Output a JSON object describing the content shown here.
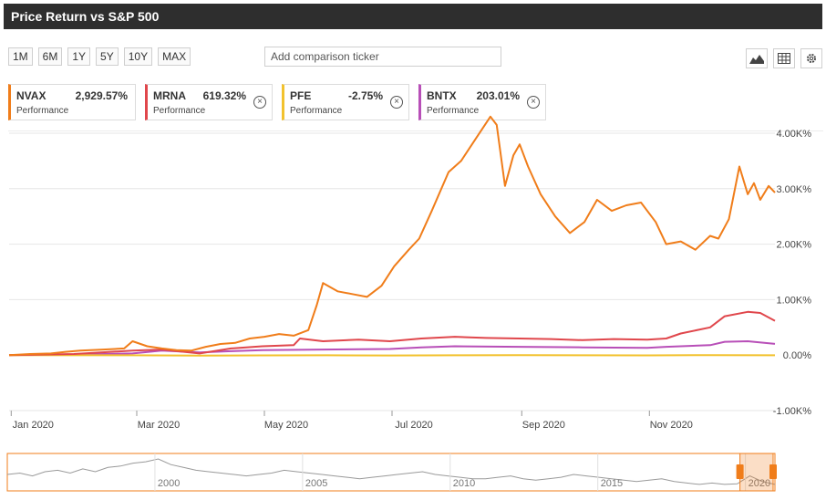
{
  "header": {
    "title": "Price Return vs S&P 500"
  },
  "toolbar": {
    "ranges": [
      "1M",
      "6M",
      "1Y",
      "5Y",
      "10Y",
      "MAX"
    ],
    "compare_placeholder": "Add comparison ticker",
    "icons": [
      "mountain-chart-icon",
      "table-icon",
      "gear-icon"
    ]
  },
  "legend": [
    {
      "ticker": "NVAX",
      "value": "2,929.57%",
      "sub": "Performance",
      "color": "#f07d1a"
    },
    {
      "ticker": "MRNA",
      "value": "619.32%",
      "sub": "Performance",
      "color": "#e0474c"
    },
    {
      "ticker": "PFE",
      "value": "-2.75%",
      "sub": "Performance",
      "color": "#f2c22e"
    },
    {
      "ticker": "BNTX",
      "value": "203.01%",
      "sub": "Performance",
      "color": "#b84fb8"
    }
  ],
  "chart_data": {
    "type": "line",
    "x_tick_labels": [
      "Jan 2020",
      "Mar 2020",
      "May 2020",
      "Jul 2020",
      "Sep 2020",
      "Nov 2020"
    ],
    "y_tick_labels": [
      "4.00K%",
      "3.00K%",
      "2.00K%",
      "1.00K%",
      "0.00%",
      "-1.00K%"
    ],
    "ylim": [
      -1000,
      4000
    ],
    "x_range": [
      "2019-12-31",
      "2020-12-31"
    ],
    "grid": true,
    "series": [
      {
        "name": "NVAX",
        "color": "#f07d1a",
        "points": [
          [
            "2019-12-31",
            0
          ],
          [
            "2020-01-10",
            20
          ],
          [
            "2020-01-20",
            30
          ],
          [
            "2020-01-27",
            60
          ],
          [
            "2020-02-03",
            80
          ],
          [
            "2020-02-14",
            100
          ],
          [
            "2020-02-24",
            120
          ],
          [
            "2020-02-28",
            250
          ],
          [
            "2020-03-06",
            160
          ],
          [
            "2020-03-13",
            120
          ],
          [
            "2020-03-20",
            90
          ],
          [
            "2020-03-27",
            80
          ],
          [
            "2020-04-03",
            150
          ],
          [
            "2020-04-10",
            200
          ],
          [
            "2020-04-17",
            220
          ],
          [
            "2020-04-24",
            300
          ],
          [
            "2020-05-01",
            330
          ],
          [
            "2020-05-08",
            380
          ],
          [
            "2020-05-15",
            350
          ],
          [
            "2020-05-22",
            450
          ],
          [
            "2020-05-26",
            900
          ],
          [
            "2020-05-29",
            1300
          ],
          [
            "2020-06-05",
            1150
          ],
          [
            "2020-06-12",
            1100
          ],
          [
            "2020-06-19",
            1050
          ],
          [
            "2020-06-26",
            1250
          ],
          [
            "2020-07-02",
            1600
          ],
          [
            "2020-07-09",
            1900
          ],
          [
            "2020-07-14",
            2100
          ],
          [
            "2020-07-20",
            2600
          ],
          [
            "2020-07-28",
            3300
          ],
          [
            "2020-08-03",
            3500
          ],
          [
            "2020-08-10",
            3900
          ],
          [
            "2020-08-17",
            4300
          ],
          [
            "2020-08-20",
            4150
          ],
          [
            "2020-08-24",
            3050
          ],
          [
            "2020-08-28",
            3600
          ],
          [
            "2020-08-31",
            3800
          ],
          [
            "2020-09-04",
            3400
          ],
          [
            "2020-09-10",
            2900
          ],
          [
            "2020-09-17",
            2500
          ],
          [
            "2020-09-24",
            2200
          ],
          [
            "2020-10-01",
            2400
          ],
          [
            "2020-10-07",
            2800
          ],
          [
            "2020-10-14",
            2600
          ],
          [
            "2020-10-21",
            2700
          ],
          [
            "2020-10-28",
            2750
          ],
          [
            "2020-11-04",
            2400
          ],
          [
            "2020-11-09",
            2000
          ],
          [
            "2020-11-16",
            2050
          ],
          [
            "2020-11-23",
            1900
          ],
          [
            "2020-11-30",
            2150
          ],
          [
            "2020-12-04",
            2100
          ],
          [
            "2020-12-09",
            2450
          ],
          [
            "2020-12-14",
            3400
          ],
          [
            "2020-12-18",
            2900
          ],
          [
            "2020-12-21",
            3100
          ],
          [
            "2020-12-24",
            2800
          ],
          [
            "2020-12-28",
            3050
          ],
          [
            "2020-12-31",
            2930
          ]
        ]
      },
      {
        "name": "MRNA",
        "color": "#e0474c",
        "points": [
          [
            "2019-12-31",
            0
          ],
          [
            "2020-01-31",
            20
          ],
          [
            "2020-02-28",
            80
          ],
          [
            "2020-03-13",
            100
          ],
          [
            "2020-03-31",
            30
          ],
          [
            "2020-04-15",
            120
          ],
          [
            "2020-04-30",
            160
          ],
          [
            "2020-05-15",
            180
          ],
          [
            "2020-05-18",
            300
          ],
          [
            "2020-05-29",
            250
          ],
          [
            "2020-06-15",
            280
          ],
          [
            "2020-06-30",
            250
          ],
          [
            "2020-07-15",
            300
          ],
          [
            "2020-07-31",
            330
          ],
          [
            "2020-08-15",
            310
          ],
          [
            "2020-08-31",
            300
          ],
          [
            "2020-09-15",
            290
          ],
          [
            "2020-09-30",
            270
          ],
          [
            "2020-10-15",
            290
          ],
          [
            "2020-10-31",
            280
          ],
          [
            "2020-11-09",
            300
          ],
          [
            "2020-11-16",
            390
          ],
          [
            "2020-11-30",
            500
          ],
          [
            "2020-12-07",
            700
          ],
          [
            "2020-12-18",
            780
          ],
          [
            "2020-12-24",
            760
          ],
          [
            "2020-12-31",
            619
          ]
        ]
      },
      {
        "name": "PFE",
        "color": "#f2c22e",
        "points": [
          [
            "2019-12-31",
            0
          ],
          [
            "2020-02-28",
            -3
          ],
          [
            "2020-03-31",
            -10
          ],
          [
            "2020-04-30",
            -5
          ],
          [
            "2020-05-31",
            -4
          ],
          [
            "2020-06-30",
            -6
          ],
          [
            "2020-07-31",
            -3
          ],
          [
            "2020-08-31",
            -2
          ],
          [
            "2020-09-30",
            -4
          ],
          [
            "2020-10-31",
            -5
          ],
          [
            "2020-11-30",
            0
          ],
          [
            "2020-12-31",
            -3
          ]
        ]
      },
      {
        "name": "BNTX",
        "color": "#b84fb8",
        "points": [
          [
            "2019-12-31",
            0
          ],
          [
            "2020-01-31",
            10
          ],
          [
            "2020-02-28",
            30
          ],
          [
            "2020-03-13",
            80
          ],
          [
            "2020-03-31",
            50
          ],
          [
            "2020-04-15",
            70
          ],
          [
            "2020-04-30",
            90
          ],
          [
            "2020-05-29",
            100
          ],
          [
            "2020-06-30",
            110
          ],
          [
            "2020-07-15",
            140
          ],
          [
            "2020-07-31",
            160
          ],
          [
            "2020-08-31",
            150
          ],
          [
            "2020-09-30",
            140
          ],
          [
            "2020-10-31",
            130
          ],
          [
            "2020-11-09",
            150
          ],
          [
            "2020-11-30",
            180
          ],
          [
            "2020-12-07",
            240
          ],
          [
            "2020-12-18",
            250
          ],
          [
            "2020-12-31",
            203
          ]
        ]
      }
    ],
    "navigator": {
      "year_labels": [
        "2000",
        "2005",
        "2010",
        "2015",
        "2020"
      ],
      "x_range": [
        1995,
        2021
      ],
      "selection_years": [
        2020,
        2021
      ],
      "values": [
        0.45,
        0.5,
        0.4,
        0.55,
        0.6,
        0.5,
        0.65,
        0.55,
        0.7,
        0.75,
        0.85,
        0.9,
        1.0,
        0.8,
        0.7,
        0.6,
        0.55,
        0.5,
        0.45,
        0.4,
        0.45,
        0.5,
        0.6,
        0.55,
        0.5,
        0.45,
        0.4,
        0.35,
        0.3,
        0.35,
        0.4,
        0.45,
        0.5,
        0.55,
        0.45,
        0.4,
        0.35,
        0.3,
        0.3,
        0.35,
        0.4,
        0.3,
        0.25,
        0.3,
        0.35,
        0.45,
        0.4,
        0.35,
        0.3,
        0.25,
        0.2,
        0.25,
        0.3,
        0.2,
        0.15,
        0.1,
        0.15,
        0.1,
        0.12,
        0.4,
        0.2,
        0.1
      ]
    }
  }
}
